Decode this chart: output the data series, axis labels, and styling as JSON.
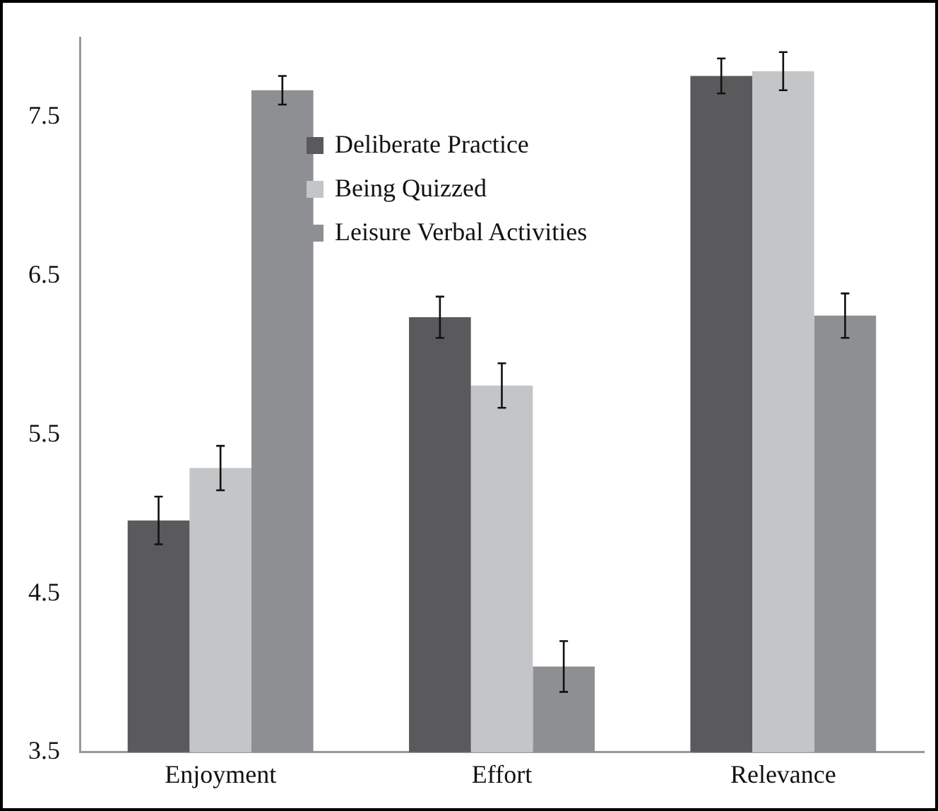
{
  "chart_data": {
    "type": "bar",
    "categories": [
      "Enjoyment",
      "Effort",
      "Relevance"
    ],
    "series": [
      {
        "name": "Deliberate Practice",
        "color": "#5a5a5c",
        "values": [
          4.96,
          6.24,
          7.76
        ],
        "errors": [
          0.15,
          0.13,
          0.11
        ]
      },
      {
        "name": "Being Quizzed",
        "color": "#c4c5c7",
        "values": [
          5.29,
          5.81,
          7.79
        ],
        "errors": [
          0.14,
          0.14,
          0.12
        ]
      },
      {
        "name": "Leisure Verbal Activities",
        "color": "#8e8f93",
        "values": [
          7.67,
          4.04,
          6.25
        ],
        "errors": [
          0.09,
          0.16,
          0.14
        ]
      }
    ],
    "ylim": [
      3.5,
      8.0
    ],
    "yticks": [
      3.5,
      4.5,
      5.5,
      6.5,
      7.5
    ],
    "grid": false,
    "legend": "top"
  }
}
